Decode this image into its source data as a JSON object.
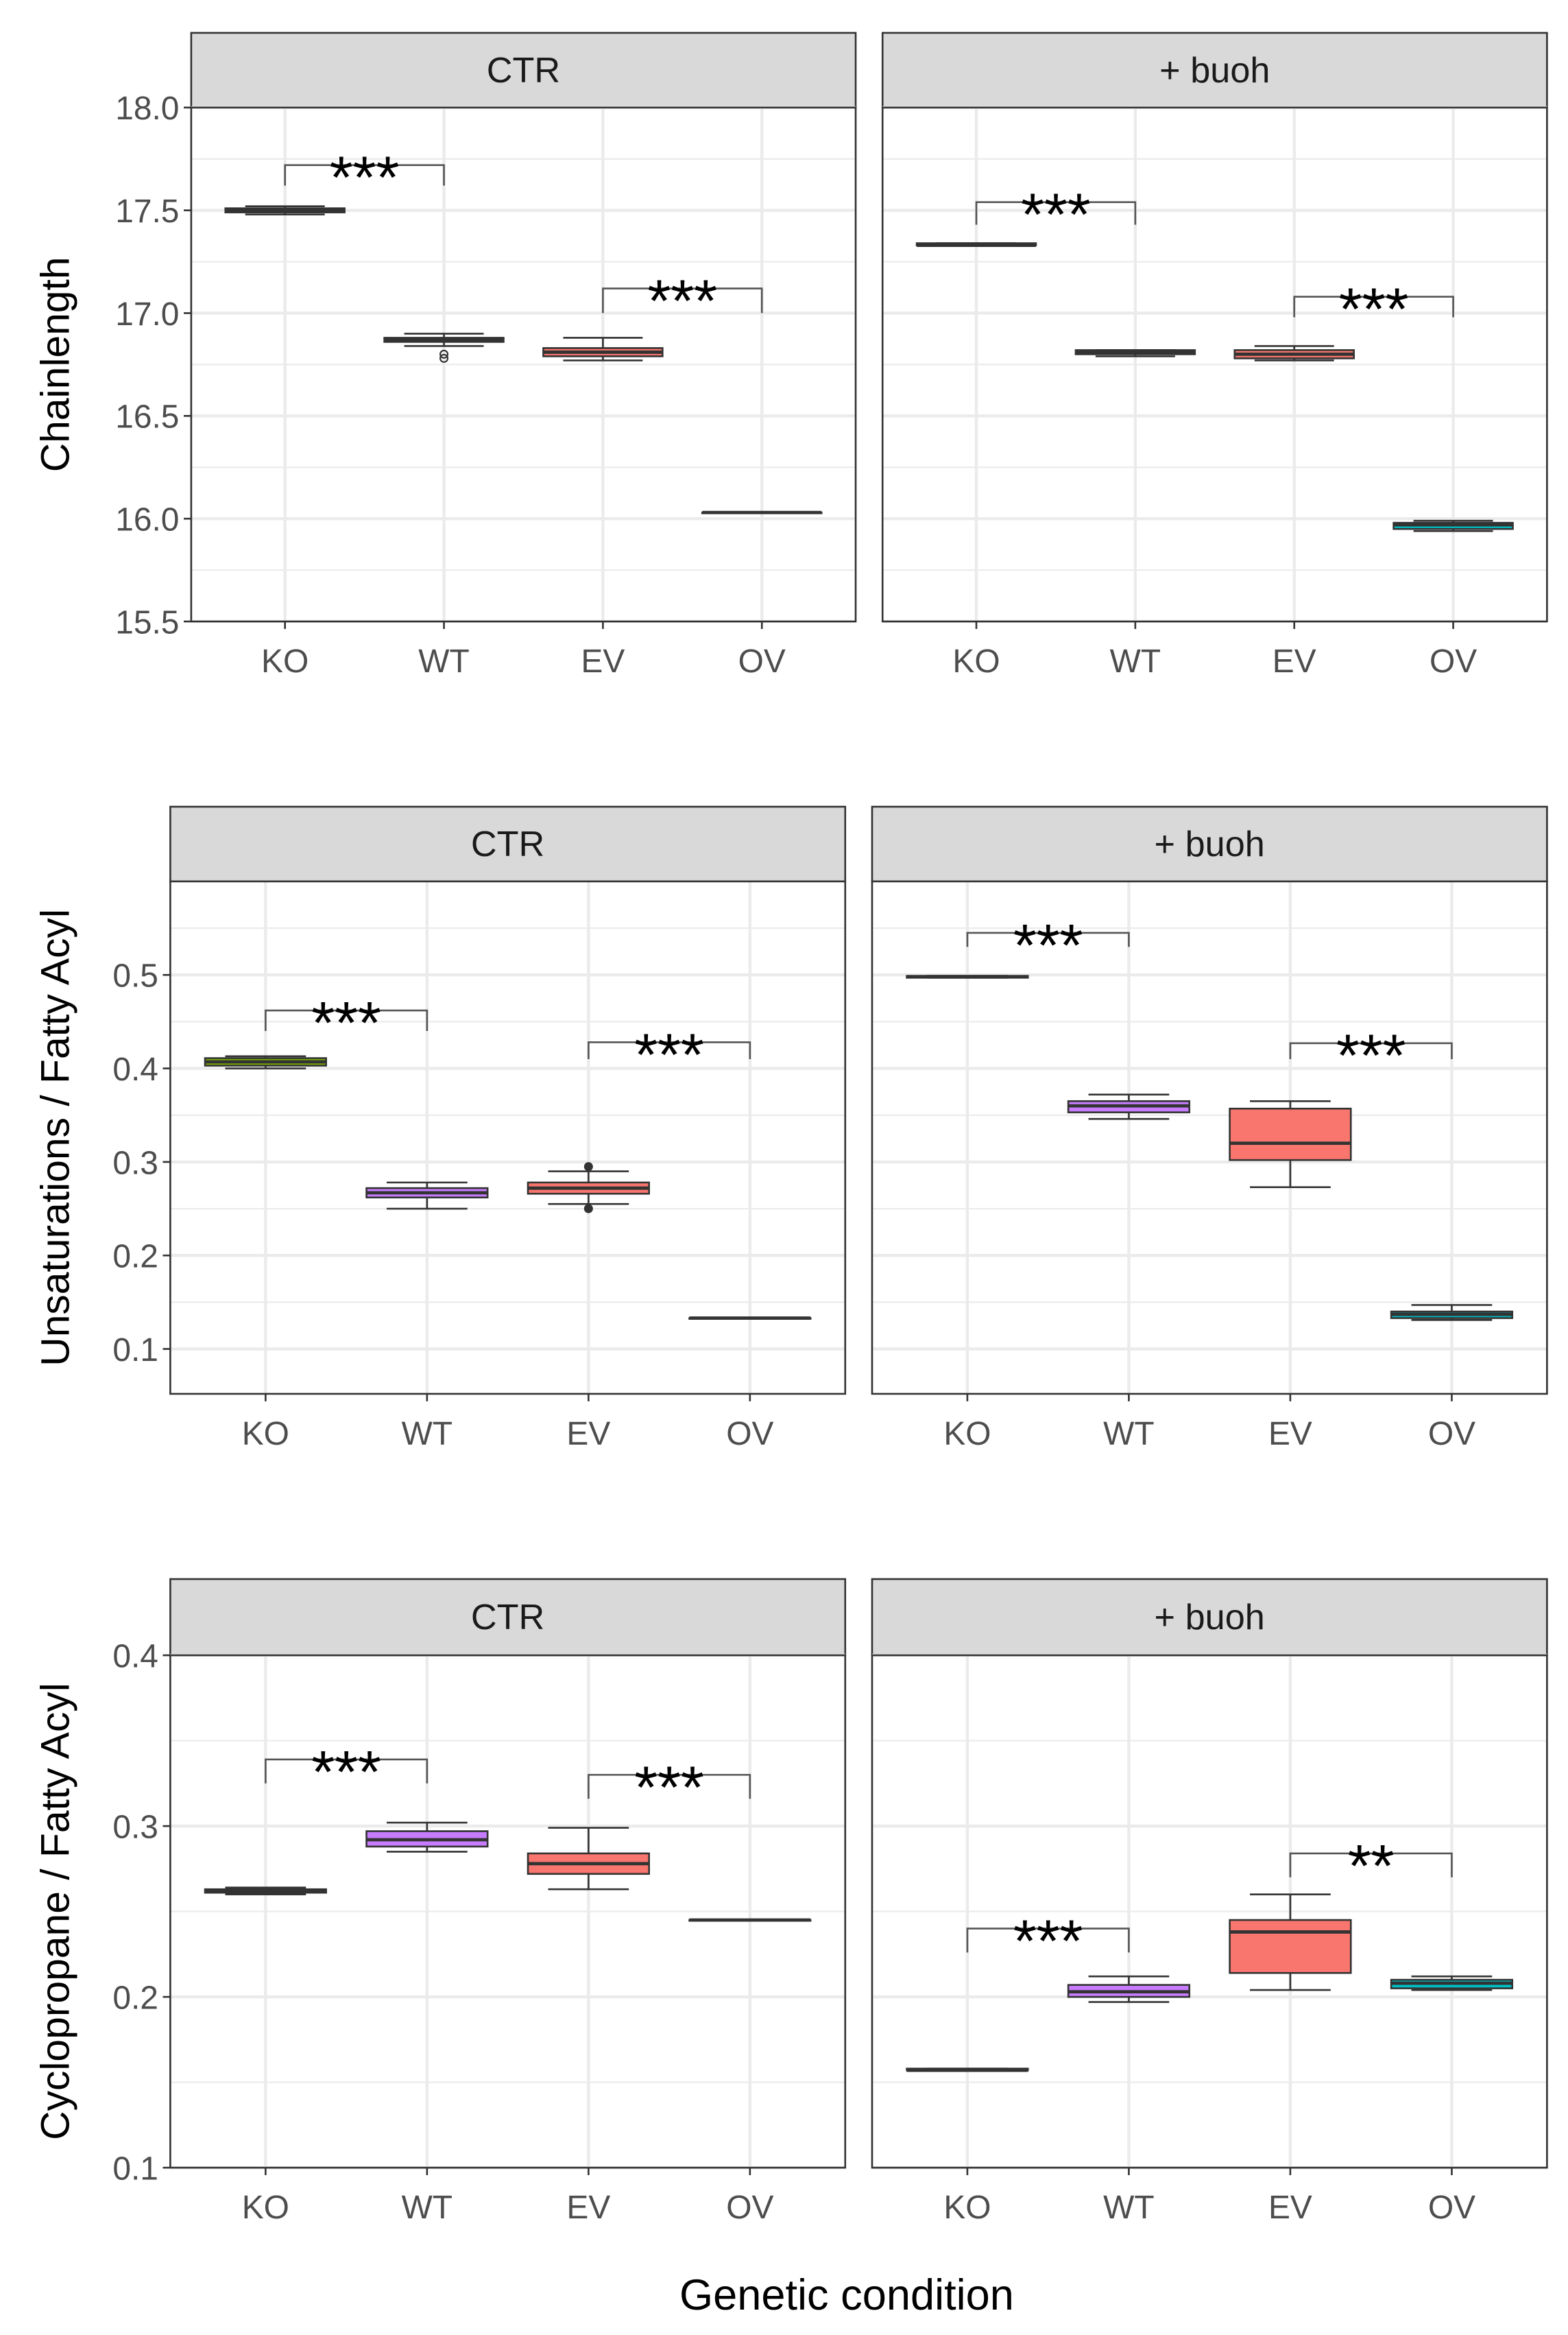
{
  "chart_data": {
    "type": "boxplot",
    "xlabel": "Genetic condition",
    "categories": [
      "KO",
      "WT",
      "EV",
      "OV"
    ],
    "colors": {
      "KO": "#7CAE00",
      "WT": "#C77CFF",
      "EV": "#F8766D",
      "OV": "#00BFC4"
    },
    "facets": [
      "CTR",
      "+ buoh"
    ],
    "rows": [
      {
        "ylabel": "Chainlength",
        "ylim": [
          15.5,
          18.0
        ],
        "yticks": [
          15.5,
          16.0,
          16.5,
          17.0,
          17.5,
          18.0
        ],
        "tick_labels": [
          "15.5",
          "16.0",
          "16.5",
          "17.0",
          "17.5",
          "18.0"
        ],
        "panels": [
          {
            "facet": "CTR",
            "boxes": [
              {
                "cat": "KO",
                "min": 17.48,
                "q1": 17.49,
                "median": 17.5,
                "q3": 17.51,
                "max": 17.52,
                "outliers": []
              },
              {
                "cat": "WT",
                "min": 16.84,
                "q1": 16.86,
                "median": 16.87,
                "q3": 16.88,
                "max": 16.9,
                "outliers": [
                  16.8,
                  16.78
                ]
              },
              {
                "cat": "EV",
                "min": 16.77,
                "q1": 16.79,
                "median": 16.81,
                "q3": 16.83,
                "max": 16.88,
                "outliers": []
              },
              {
                "cat": "OV",
                "min": 16.03,
                "q1": 16.03,
                "median": 16.03,
                "q3": 16.03,
                "max": 16.03,
                "outliers": []
              }
            ],
            "brackets": [
              {
                "from": "KO",
                "to": "WT",
                "y": 17.72,
                "leg": 17.62,
                "label": "***"
              },
              {
                "from": "EV",
                "to": "OV",
                "y": 17.12,
                "leg": 17.0,
                "label": "***"
              }
            ]
          },
          {
            "facet": "+ buoh",
            "boxes": [
              {
                "cat": "KO",
                "min": 17.33,
                "q1": 17.33,
                "median": 17.33,
                "q3": 17.34,
                "max": 17.34,
                "outliers": []
              },
              {
                "cat": "WT",
                "min": 16.79,
                "q1": 16.8,
                "median": 16.81,
                "q3": 16.82,
                "max": 16.82,
                "outliers": []
              },
              {
                "cat": "EV",
                "min": 16.77,
                "q1": 16.78,
                "median": 16.8,
                "q3": 16.82,
                "max": 16.84,
                "outliers": []
              },
              {
                "cat": "OV",
                "min": 15.94,
                "q1": 15.95,
                "median": 15.97,
                "q3": 15.98,
                "max": 15.99,
                "outliers": []
              }
            ],
            "brackets": [
              {
                "from": "KO",
                "to": "WT",
                "y": 17.54,
                "leg": 17.43,
                "label": "***"
              },
              {
                "from": "EV",
                "to": "OV",
                "y": 17.08,
                "leg": 16.98,
                "label": "***"
              }
            ]
          }
        ]
      },
      {
        "ylabel": "Unsaturations / Fatty Acyl",
        "ylim": [
          0.052,
          0.6
        ],
        "yticks": [
          0.1,
          0.2,
          0.3,
          0.4,
          0.5
        ],
        "tick_labels": [
          "0.1",
          "0.2",
          "0.3",
          "0.4",
          "0.5"
        ],
        "panels": [
          {
            "facet": "CTR",
            "boxes": [
              {
                "cat": "KO",
                "min": 0.4,
                "q1": 0.403,
                "median": 0.407,
                "q3": 0.411,
                "max": 0.413,
                "outliers": []
              },
              {
                "cat": "WT",
                "min": 0.25,
                "q1": 0.262,
                "median": 0.267,
                "q3": 0.272,
                "max": 0.278,
                "outliers": []
              },
              {
                "cat": "EV",
                "min": 0.255,
                "q1": 0.266,
                "median": 0.272,
                "q3": 0.278,
                "max": 0.29,
                "outliers": [
                  0.295,
                  0.25
                ]
              },
              {
                "cat": "OV",
                "min": 0.133,
                "q1": 0.133,
                "median": 0.133,
                "q3": 0.133,
                "max": 0.133,
                "outliers": []
              }
            ],
            "brackets": [
              {
                "from": "KO",
                "to": "WT",
                "y": 0.462,
                "leg": 0.44,
                "label": "***"
              },
              {
                "from": "EV",
                "to": "OV",
                "y": 0.428,
                "leg": 0.41,
                "label": "***"
              }
            ]
          },
          {
            "facet": "+ buoh",
            "boxes": [
              {
                "cat": "KO",
                "min": 0.497,
                "q1": 0.497,
                "median": 0.498,
                "q3": 0.499,
                "max": 0.499,
                "outliers": []
              },
              {
                "cat": "WT",
                "min": 0.346,
                "q1": 0.353,
                "median": 0.36,
                "q3": 0.365,
                "max": 0.372,
                "outliers": []
              },
              {
                "cat": "EV",
                "min": 0.273,
                "q1": 0.302,
                "median": 0.32,
                "q3": 0.357,
                "max": 0.365,
                "outliers": []
              },
              {
                "cat": "OV",
                "min": 0.131,
                "q1": 0.133,
                "median": 0.137,
                "q3": 0.14,
                "max": 0.147,
                "outliers": []
              }
            ],
            "brackets": [
              {
                "from": "KO",
                "to": "WT",
                "y": 0.545,
                "leg": 0.53,
                "label": "***"
              },
              {
                "from": "EV",
                "to": "OV",
                "y": 0.427,
                "leg": 0.41,
                "label": "***"
              }
            ]
          }
        ]
      },
      {
        "ylabel": "Cyclopropane / Fatty Acyl",
        "ylim": [
          0.1,
          0.4
        ],
        "yticks": [
          0.1,
          0.2,
          0.3,
          0.4
        ],
        "tick_labels": [
          "0.1",
          "0.2",
          "0.3",
          "0.4"
        ],
        "panels": [
          {
            "facet": "CTR",
            "boxes": [
              {
                "cat": "KO",
                "min": 0.26,
                "q1": 0.261,
                "median": 0.262,
                "q3": 0.263,
                "max": 0.264,
                "outliers": []
              },
              {
                "cat": "WT",
                "min": 0.285,
                "q1": 0.288,
                "median": 0.292,
                "q3": 0.297,
                "max": 0.302,
                "outliers": []
              },
              {
                "cat": "EV",
                "min": 0.263,
                "q1": 0.272,
                "median": 0.278,
                "q3": 0.284,
                "max": 0.299,
                "outliers": []
              },
              {
                "cat": "OV",
                "min": 0.245,
                "q1": 0.245,
                "median": 0.245,
                "q3": 0.245,
                "max": 0.245,
                "outliers": []
              }
            ],
            "brackets": [
              {
                "from": "KO",
                "to": "WT",
                "y": 0.339,
                "leg": 0.325,
                "label": "***"
              },
              {
                "from": "EV",
                "to": "OV",
                "y": 0.33,
                "leg": 0.316,
                "label": "***"
              }
            ]
          },
          {
            "facet": "+ buoh",
            "boxes": [
              {
                "cat": "KO",
                "min": 0.157,
                "q1": 0.157,
                "median": 0.157,
                "q3": 0.158,
                "max": 0.158,
                "outliers": []
              },
              {
                "cat": "WT",
                "min": 0.197,
                "q1": 0.2,
                "median": 0.203,
                "q3": 0.207,
                "max": 0.212,
                "outliers": []
              },
              {
                "cat": "EV",
                "min": 0.204,
                "q1": 0.214,
                "median": 0.238,
                "q3": 0.245,
                "max": 0.26,
                "outliers": []
              },
              {
                "cat": "OV",
                "min": 0.204,
                "q1": 0.205,
                "median": 0.208,
                "q3": 0.21,
                "max": 0.212,
                "outliers": []
              }
            ],
            "brackets": [
              {
                "from": "KO",
                "to": "WT",
                "y": 0.24,
                "leg": 0.226,
                "label": "***"
              },
              {
                "from": "EV",
                "to": "OV",
                "y": 0.284,
                "leg": 0.27,
                "label": "**"
              }
            ]
          }
        ]
      }
    ]
  }
}
